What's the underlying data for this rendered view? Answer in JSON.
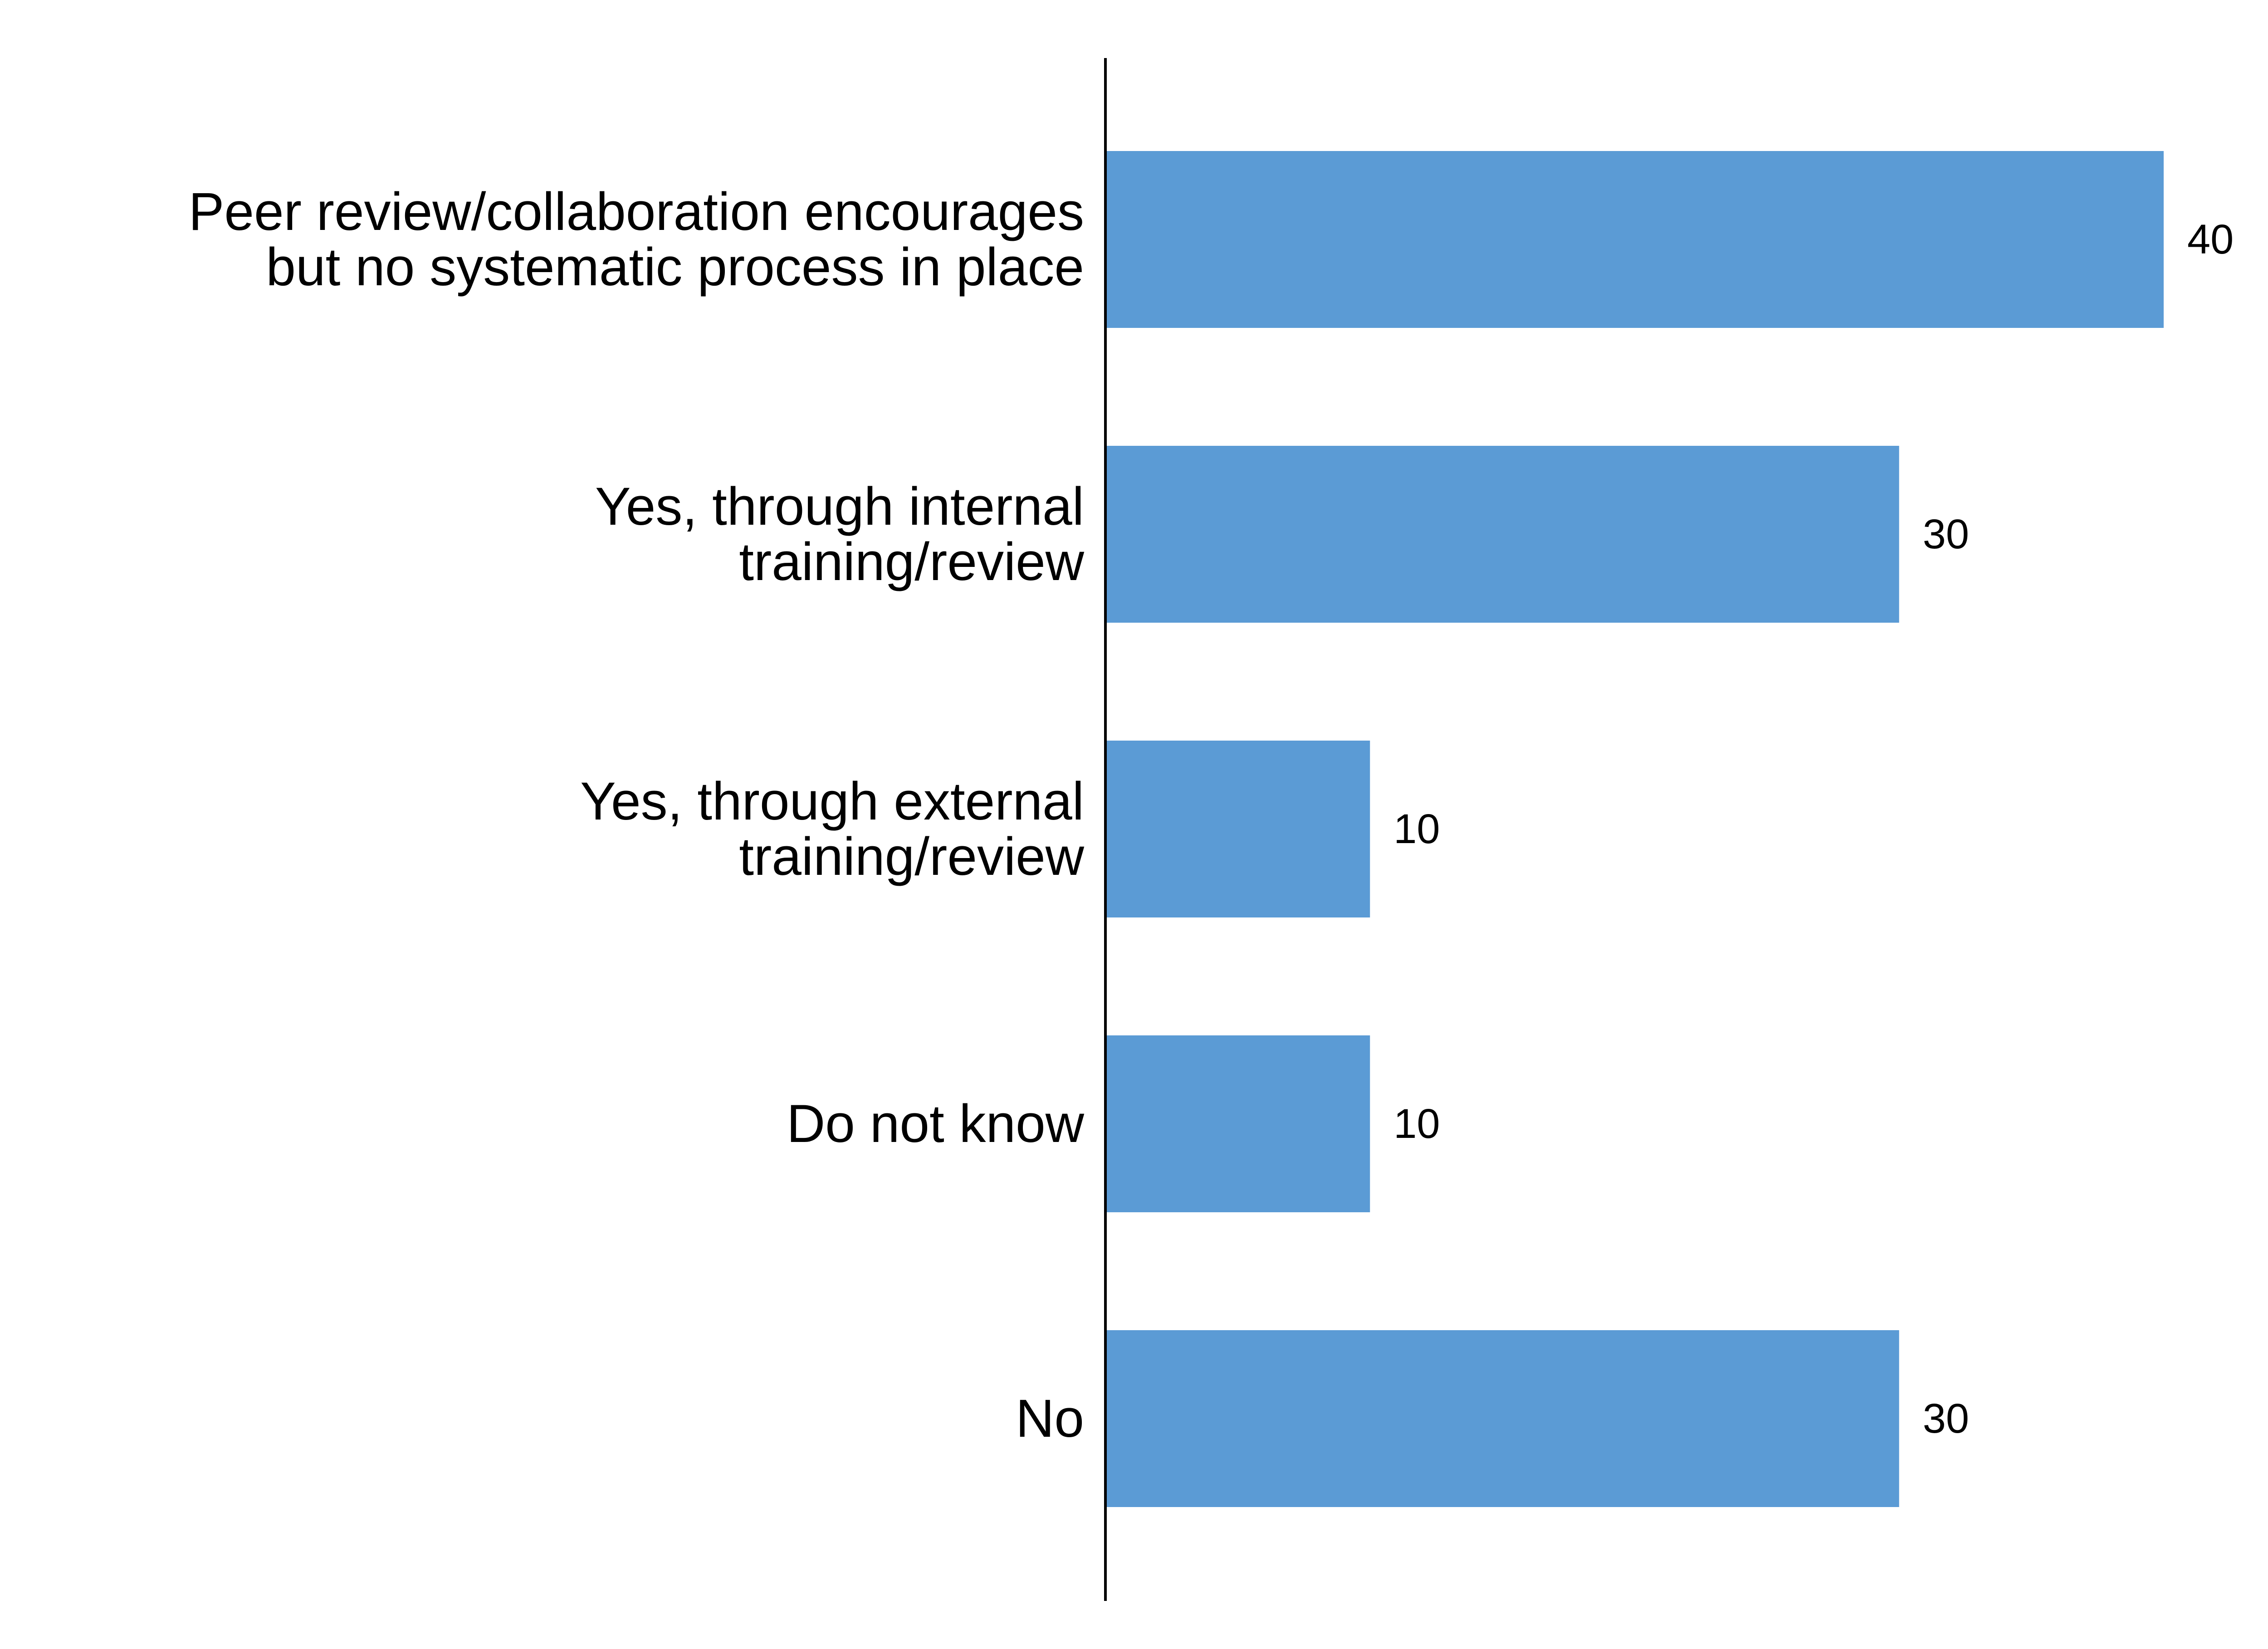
{
  "chart_data": {
    "type": "bar",
    "orientation": "horizontal",
    "title": "",
    "xlabel": "",
    "ylabel": "",
    "categories": [
      [
        "Peer review/collaboration encourages",
        "but no systematic process in place"
      ],
      [
        "Yes, through internal",
        "training/review"
      ],
      [
        "Yes, through external",
        "training/review"
      ],
      [
        "Do not know"
      ],
      [
        "No"
      ]
    ],
    "values": [
      40,
      30,
      10,
      10,
      30
    ],
    "data_labels": [
      "40",
      "30",
      "10",
      "10",
      "30"
    ],
    "xlim": [
      0,
      40
    ],
    "grid": false,
    "legend": "none",
    "colors": {
      "bar": "#5b9bd5",
      "axis": "#000000",
      "text": "#000000"
    }
  }
}
